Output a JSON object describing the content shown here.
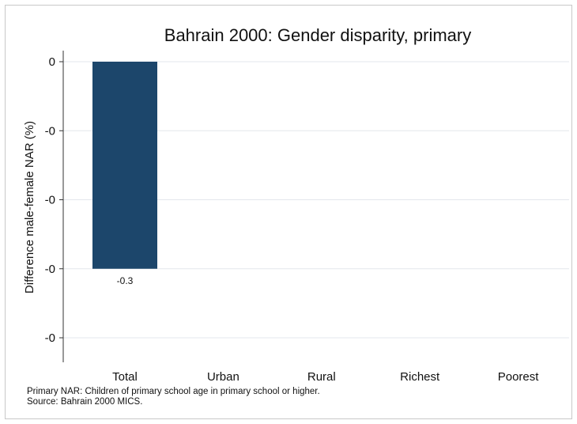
{
  "chart_data": {
    "type": "bar",
    "title": "Bahrain 2000: Gender disparity, primary",
    "xlabel": "",
    "ylabel": "Difference male-female NAR (%)",
    "categories": [
      "Total",
      "Urban",
      "Rural",
      "Richest",
      "Poorest"
    ],
    "values": [
      -0.3,
      null,
      null,
      null,
      null
    ],
    "data_labels": [
      "-0.3",
      "",
      "",
      "",
      ""
    ],
    "ylim": [
      -0.4,
      0
    ],
    "yticks": [
      0,
      -0.1,
      -0.2,
      -0.3,
      -0.4
    ],
    "ytick_labels": [
      "0",
      "-0",
      "-0",
      "-0",
      "-0"
    ],
    "grid": true,
    "bar_color": "#1c466b"
  },
  "notes": {
    "line1": "Primary NAR: Children of primary school age in primary school or higher.",
    "line2": "Source: Bahrain 2000 MICS."
  }
}
